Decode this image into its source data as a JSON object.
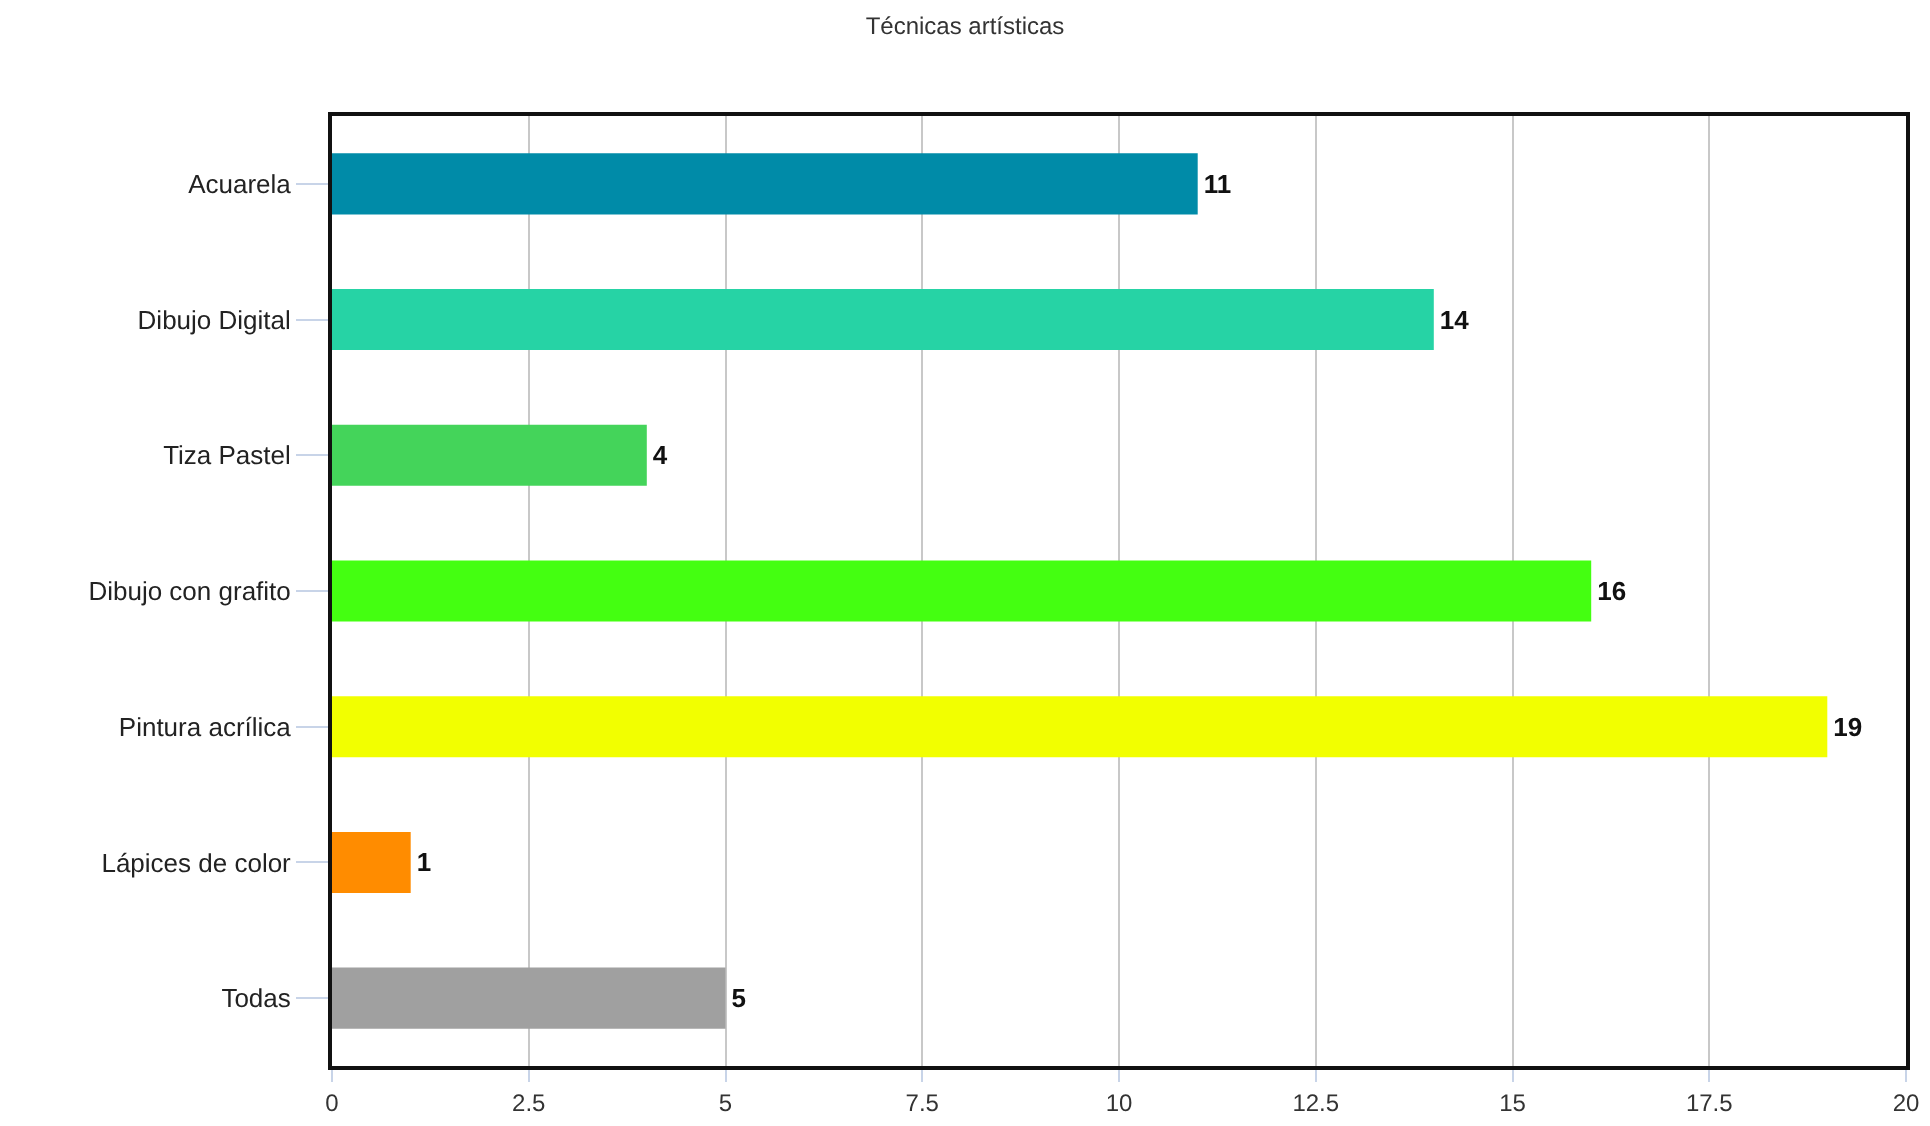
{
  "chart_data": {
    "type": "bar",
    "orientation": "horizontal",
    "title": "Técnicas artísticas",
    "categories": [
      "Acuarela",
      "Dibujo Digital",
      "Tiza Pastel",
      "Dibujo con grafito",
      "Pintura acrílica",
      "Lápices de color",
      "Todas"
    ],
    "values": [
      11,
      14,
      4,
      16,
      19,
      1,
      5
    ],
    "colors": [
      "#008ba8",
      "#26d3a5",
      "#44d45a",
      "#44ff11",
      "#f2ff00",
      "#ff8c00",
      "#a0a0a0"
    ],
    "xlim": [
      0,
      20
    ],
    "xticks": [
      0,
      2.5,
      5,
      7.5,
      10,
      12.5,
      15,
      17.5,
      20
    ],
    "grid": "x",
    "data_labels": true
  }
}
